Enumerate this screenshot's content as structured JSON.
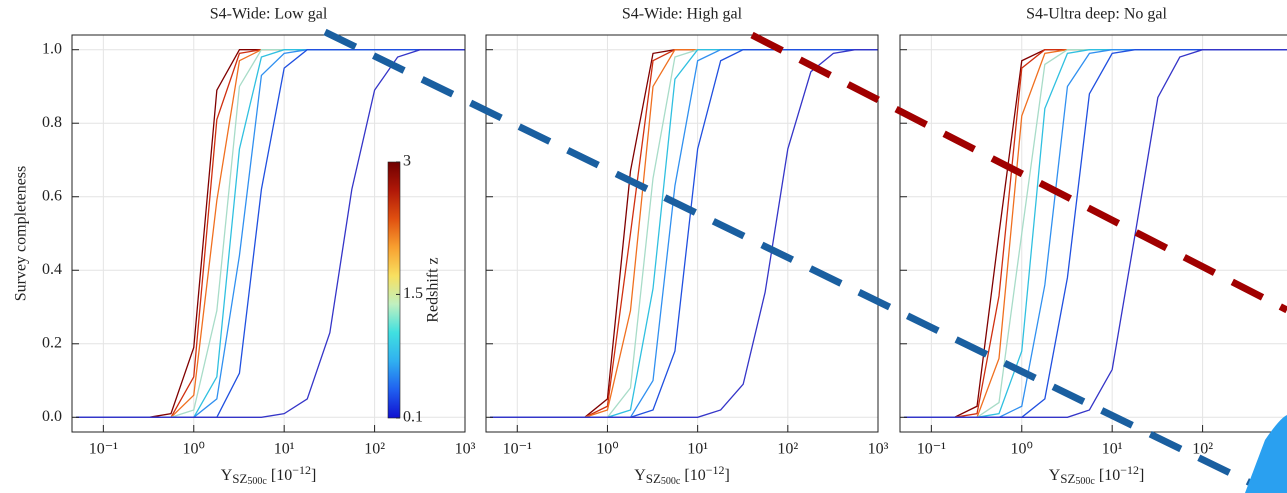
{
  "chart_data": [
    {
      "type": "line",
      "title": "S4-Wide: Low gal",
      "ylabel": "Survey completeness",
      "xlabel": [
        "Y",
        "SZ",
        "500c",
        " [10",
        "−12",
        "]"
      ],
      "log_x": true,
      "grid": true,
      "xlim": [
        0.045,
        1000
      ],
      "ylim": [
        -0.04,
        1.04
      ],
      "xticks": [
        {
          "value": 0.1,
          "label": "10⁻¹"
        },
        {
          "value": 1,
          "label": "10⁰"
        },
        {
          "value": 10,
          "label": "10¹"
        },
        {
          "value": 100,
          "label": "10²"
        },
        {
          "value": 1000,
          "label": "10³"
        }
      ],
      "yticks": [
        {
          "value": 0,
          "label": "0.0"
        },
        0.2,
        0.4,
        0.6,
        0.8,
        {
          "value": 1,
          "label": "1.0"
        }
      ],
      "x": [
        0.05,
        0.1,
        0.18,
        0.32,
        0.56,
        1,
        1.8,
        3.2,
        5.6,
        10,
        18,
        32,
        56,
        100,
        180,
        320,
        560,
        1000
      ],
      "series": [
        {
          "color": "#800000",
          "values": [
            0,
            0,
            0,
            0,
            0.01,
            0.19,
            0.89,
            1,
            1,
            1,
            1,
            1,
            1,
            1,
            1,
            1,
            1,
            1
          ]
        },
        {
          "color": "#d03010",
          "values": [
            0,
            0,
            0,
            0,
            0,
            0.11,
            0.81,
            0.99,
            1,
            1,
            1,
            1,
            1,
            1,
            1,
            1,
            1,
            1
          ]
        },
        {
          "color": "#f07020",
          "values": [
            0,
            0,
            0,
            0,
            0,
            0.06,
            0.59,
            0.97,
            1,
            1,
            1,
            1,
            1,
            1,
            1,
            1,
            1,
            1
          ]
        },
        {
          "color": "#a8dcc8",
          "values": [
            0,
            0,
            0,
            0,
            0,
            0.02,
            0.29,
            0.9,
            1,
            1,
            1,
            1,
            1,
            1,
            1,
            1,
            1,
            1
          ]
        },
        {
          "color": "#30c0e0",
          "values": [
            0,
            0,
            0,
            0,
            0,
            0,
            0.11,
            0.73,
            0.98,
            1,
            1,
            1,
            1,
            1,
            1,
            1,
            1,
            1
          ]
        },
        {
          "color": "#3090f0",
          "values": [
            0,
            0,
            0,
            0,
            0,
            0,
            0.05,
            0.44,
            0.93,
            0.99,
            1,
            1,
            1,
            1,
            1,
            1,
            1,
            1
          ]
        },
        {
          "color": "#2050e0",
          "values": [
            0,
            0,
            0,
            0,
            0,
            0,
            0,
            0.12,
            0.62,
            0.95,
            1,
            1,
            1,
            1,
            1,
            1,
            1,
            1
          ]
        },
        {
          "color": "#3535c8",
          "values": [
            0,
            0,
            0,
            0,
            0,
            0,
            0,
            0,
            0,
            0.01,
            0.05,
            0.23,
            0.62,
            0.89,
            0.98,
            1,
            1,
            1
          ]
        }
      ],
      "colorbar": {
        "label": "Redshift z",
        "lim": [
          0.1,
          3
        ],
        "ticks": [
          3,
          1.5,
          0.1
        ],
        "colors": [
          "#1010d0",
          "#2060f0",
          "#30b0f0",
          "#40e0e0",
          "#c0f0c0",
          "#f8e060",
          "#f8a030",
          "#e05010",
          "#b01808",
          "#700000"
        ]
      }
    },
    {
      "type": "line",
      "title": "S4-Wide: High gal",
      "xlabel": [
        "Y",
        "SZ",
        "500c",
        " [10",
        "−12",
        "]"
      ],
      "log_x": true,
      "grid": true,
      "xlim": [
        0.045,
        1000
      ],
      "ylim": [
        -0.04,
        1.04
      ],
      "xticks": [
        {
          "value": 0.1,
          "label": "10⁻¹"
        },
        {
          "value": 1,
          "label": "10⁰"
        },
        {
          "value": 10,
          "label": "10¹"
        },
        {
          "value": 100,
          "label": "10²"
        },
        {
          "value": 1000,
          "label": "10³"
        }
      ],
      "yticks": [
        0,
        0.2,
        0.4,
        0.6,
        0.8,
        1
      ],
      "x": [
        0.05,
        0.1,
        0.18,
        0.32,
        0.56,
        1,
        1.8,
        3.2,
        5.6,
        10,
        18,
        32,
        56,
        100,
        180,
        320,
        560,
        1000
      ],
      "series": [
        {
          "color": "#800000",
          "values": [
            0,
            0,
            0,
            0,
            0,
            0.05,
            0.67,
            0.99,
            1,
            1,
            1,
            1,
            1,
            1,
            1,
            1,
            1,
            1
          ]
        },
        {
          "color": "#d03010",
          "values": [
            0,
            0,
            0,
            0,
            0,
            0.03,
            0.5,
            0.97,
            1,
            1,
            1,
            1,
            1,
            1,
            1,
            1,
            1,
            1
          ]
        },
        {
          "color": "#f07020",
          "values": [
            0,
            0,
            0,
            0,
            0,
            0.02,
            0.29,
            0.9,
            1,
            1,
            1,
            1,
            1,
            1,
            1,
            1,
            1,
            1
          ]
        },
        {
          "color": "#a8dcc8",
          "values": [
            0,
            0,
            0,
            0,
            0,
            0,
            0.08,
            0.65,
            0.98,
            1,
            1,
            1,
            1,
            1,
            1,
            1,
            1,
            1
          ]
        },
        {
          "color": "#30c0e0",
          "values": [
            0,
            0,
            0,
            0,
            0,
            0,
            0.02,
            0.35,
            0.92,
            1,
            1,
            1,
            1,
            1,
            1,
            1,
            1,
            1
          ]
        },
        {
          "color": "#3090f0",
          "values": [
            0,
            0,
            0,
            0,
            0,
            0,
            0,
            0.1,
            0.63,
            0.97,
            1,
            1,
            1,
            1,
            1,
            1,
            1,
            1
          ]
        },
        {
          "color": "#2050e0",
          "values": [
            0,
            0,
            0,
            0,
            0,
            0,
            0,
            0.02,
            0.18,
            0.73,
            0.97,
            1,
            1,
            1,
            1,
            1,
            1,
            1
          ]
        },
        {
          "color": "#3535c8",
          "values": [
            0,
            0,
            0,
            0,
            0,
            0,
            0,
            0,
            0,
            0,
            0.02,
            0.09,
            0.34,
            0.73,
            0.94,
            0.99,
            1,
            1
          ]
        }
      ]
    },
    {
      "type": "line",
      "title": "S4-Ultra deep: No gal",
      "xlabel": [
        "Y",
        "SZ",
        "500c",
        " [10",
        "−12",
        "]"
      ],
      "log_x": true,
      "grid": true,
      "xlim": [
        0.045,
        1000
      ],
      "ylim": [
        -0.04,
        1.04
      ],
      "xticks": [
        {
          "value": 0.1,
          "label": "10⁻¹"
        },
        {
          "value": 1,
          "label": "10⁰"
        },
        {
          "value": 10,
          "label": "10¹"
        },
        {
          "value": 100,
          "label": "10²"
        }
      ],
      "yticks": [
        0,
        0.2,
        0.4,
        0.6,
        0.8,
        1
      ],
      "x": [
        0.05,
        0.1,
        0.18,
        0.32,
        0.56,
        1,
        1.8,
        3.2,
        5.6,
        10,
        18,
        32,
        56,
        100,
        180,
        320,
        560,
        1000
      ],
      "series": [
        {
          "color": "#800000",
          "values": [
            0,
            0,
            0,
            0.03,
            0.5,
            0.97,
            1,
            1,
            1,
            1,
            1,
            1,
            1,
            1,
            1,
            1,
            1,
            1
          ]
        },
        {
          "color": "#d03010",
          "values": [
            0,
            0,
            0,
            0.01,
            0.33,
            0.95,
            1,
            1,
            1,
            1,
            1,
            1,
            1,
            1,
            1,
            1,
            1,
            1
          ]
        },
        {
          "color": "#f07020",
          "values": [
            0,
            0,
            0,
            0,
            0.16,
            0.82,
            0.99,
            1,
            1,
            1,
            1,
            1,
            1,
            1,
            1,
            1,
            1,
            1
          ]
        },
        {
          "color": "#a8dcc8",
          "values": [
            0,
            0,
            0,
            0,
            0.04,
            0.5,
            0.96,
            1,
            1,
            1,
            1,
            1,
            1,
            1,
            1,
            1,
            1,
            1
          ]
        },
        {
          "color": "#30c0e0",
          "values": [
            0,
            0,
            0,
            0,
            0.01,
            0.18,
            0.84,
            0.99,
            1,
            1,
            1,
            1,
            1,
            1,
            1,
            1,
            1,
            1
          ]
        },
        {
          "color": "#3090f0",
          "values": [
            0,
            0,
            0,
            0,
            0,
            0.03,
            0.36,
            0.9,
            0.99,
            1,
            1,
            1,
            1,
            1,
            1,
            1,
            1,
            1
          ]
        },
        {
          "color": "#2050e0",
          "values": [
            0,
            0,
            0,
            0,
            0,
            0,
            0.05,
            0.38,
            0.88,
            0.99,
            1,
            1,
            1,
            1,
            1,
            1,
            1,
            1
          ]
        },
        {
          "color": "#3535c8",
          "values": [
            0,
            0,
            0,
            0,
            0,
            0,
            0,
            0,
            0.02,
            0.13,
            0.5,
            0.87,
            0.98,
            1,
            1,
            1,
            1,
            1
          ]
        }
      ]
    }
  ]
}
